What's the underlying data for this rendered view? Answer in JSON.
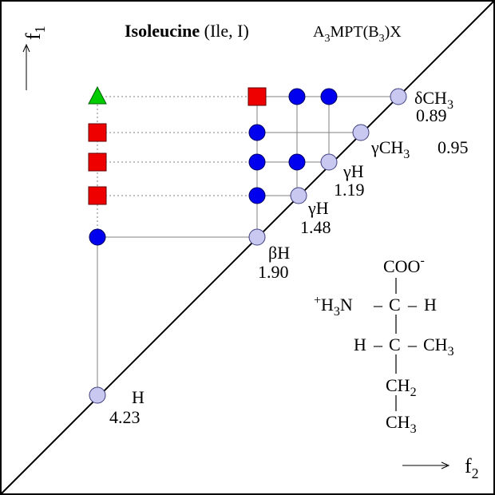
{
  "title": {
    "residue_bold": "Isoleucine",
    "residue_rest": " (Ile, I)",
    "experiment_A": "A",
    "experiment_sub3": "3",
    "experiment_mpt": "MPT(B",
    "experiment_sub3b": "3",
    "experiment_close": ")X"
  },
  "axes": {
    "f1_main": "f",
    "f1_sub": "1",
    "f2_main": "f",
    "f2_sub": "2"
  },
  "colors": {
    "diagonal": "#9a9ad6",
    "blue_peak": "#0000ee",
    "red_square": "#ee0000",
    "green_triangle": "#00cc00",
    "line": "#808080",
    "frame": "#000000"
  },
  "labels": {
    "delta": {
      "greek": "δ",
      "group": "CH",
      "sub": "3",
      "ppm": "0.89"
    },
    "gamma_ch3": {
      "greek": "γ",
      "group": "CH",
      "sub": "3",
      "ppm": "0.95"
    },
    "gamma1": {
      "greek": "γ",
      "group": "H",
      "ppm": "1.19"
    },
    "gamma2": {
      "greek": "γ",
      "group": "H",
      "ppm": "1.48"
    },
    "beta": {
      "greek": "β",
      "group": "H",
      "ppm": "1.90"
    },
    "alpha": {
      "group": "H",
      "ppm": "4.23"
    }
  },
  "structure": {
    "coo": "COO",
    "coo_charge": "-",
    "plus": "+",
    "h3n_h": "H",
    "h3n_sub": "3",
    "h3n_n": "N",
    "dash": "–",
    "c": "C",
    "h": "H",
    "ch3_ch": "CH",
    "ch3_sub": "3",
    "ch2_ch": "CH",
    "ch2_sub": "2",
    "bottom_ch": "CH",
    "bottom_sub": "3"
  }
}
